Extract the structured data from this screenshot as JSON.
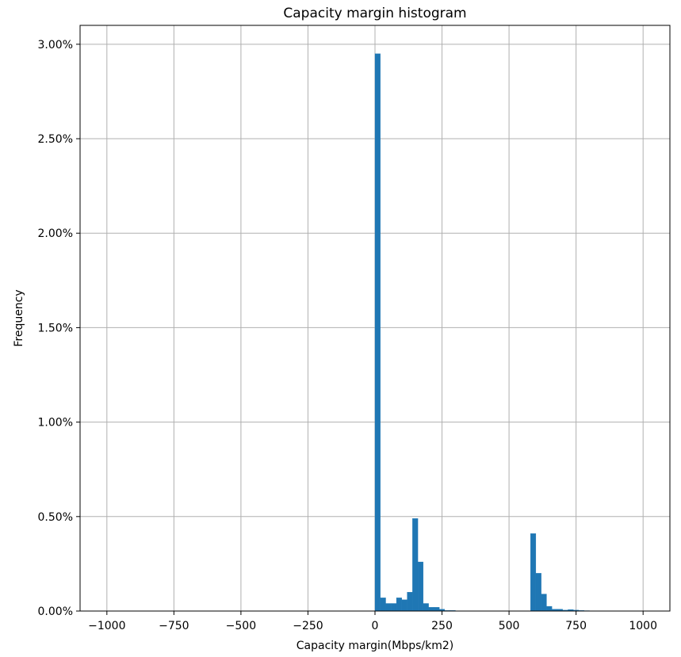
{
  "chart_data": {
    "type": "bar",
    "title": "Capacity margin histogram",
    "xlabel": "Capacity margin(Mbps/km2)",
    "ylabel": "Frequency",
    "xlim": [
      -1100,
      1100
    ],
    "ylim": [
      0,
      3.1
    ],
    "x_ticks": [
      -1000,
      -750,
      -500,
      -250,
      0,
      250,
      500,
      750,
      1000
    ],
    "x_tick_labels": [
      "−1000",
      "−750",
      "−500",
      "−250",
      "0",
      "250",
      "500",
      "750",
      "1000"
    ],
    "y_ticks": [
      0,
      0.5,
      1.0,
      1.5,
      2.0,
      2.5,
      3.0
    ],
    "y_tick_labels": [
      "0.00%",
      "0.50%",
      "1.00%",
      "1.50%",
      "2.00%",
      "2.50%",
      "3.00%"
    ],
    "y_unit": "percent",
    "grid": true,
    "color": "#1f77b4",
    "bin_width": 20,
    "bin_starts": [
      0,
      20,
      40,
      60,
      80,
      100,
      120,
      140,
      160,
      180,
      200,
      220,
      240,
      260,
      280,
      580,
      600,
      620,
      640,
      660,
      680,
      700,
      720,
      740,
      760,
      780
    ],
    "values": [
      2.95,
      0.07,
      0.04,
      0.04,
      0.07,
      0.06,
      0.1,
      0.49,
      0.26,
      0.04,
      0.02,
      0.02,
      0.01,
      0.003,
      0.003,
      0.41,
      0.2,
      0.09,
      0.025,
      0.01,
      0.01,
      0.005,
      0.008,
      0.005,
      0.003,
      0.002
    ]
  }
}
